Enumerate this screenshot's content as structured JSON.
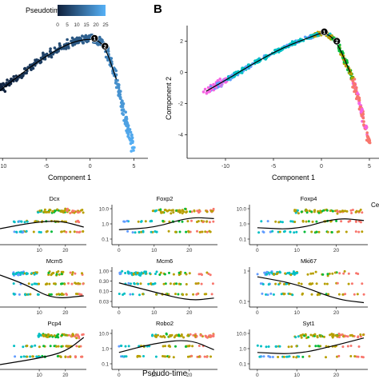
{
  "panel_label": "B",
  "panel_a": {
    "legend": {
      "title": "Pseudotime",
      "ticks": [
        "0",
        "5",
        "10",
        "15",
        "20",
        "25"
      ],
      "min": 0,
      "max": 25,
      "colors": [
        "#0f1f3a",
        "#56b1f7"
      ]
    },
    "xlabel": "Component 1",
    "x_ticks": [
      "-10",
      "-5",
      "0",
      "5"
    ],
    "branch_points": [
      "1",
      "2"
    ]
  },
  "panel_b": {
    "xlabel": "Component 1",
    "ylabel": "Component 2",
    "x_ticks": [
      "-10",
      "-5",
      "0",
      "5"
    ],
    "y_ticks": [
      "2",
      "0",
      "-2",
      "-4"
    ],
    "branch_points": [
      "1",
      "2"
    ]
  },
  "genes": {
    "x_axis_label": "Pseudo-time",
    "row1": [
      {
        "name": "Dcx",
        "y_ticks": [],
        "x_ticks": [
          "10",
          "20"
        ]
      },
      {
        "name": "Foxp2",
        "y_ticks": [
          "10.0",
          "1.0",
          "0.1"
        ],
        "x_ticks": [
          "0",
          "10",
          "20"
        ]
      },
      {
        "name": "Foxp4",
        "y_ticks": [
          "10.0",
          "1.0",
          "0.1"
        ],
        "x_ticks": [
          "0",
          "10",
          "20"
        ]
      }
    ],
    "row2": [
      {
        "name": "Mcm5",
        "y_ticks": [],
        "x_ticks": [
          "10",
          "20"
        ]
      },
      {
        "name": "Mcm6",
        "y_ticks": [
          "1.00",
          "0.30",
          "0.10",
          "0.03"
        ],
        "x_ticks": [
          "0",
          "10",
          "20"
        ]
      },
      {
        "name": "Mki67",
        "y_ticks": [
          "1",
          "0.1"
        ],
        "x_ticks": [
          "0",
          "10",
          "20"
        ]
      }
    ],
    "row3": [
      {
        "name": "Pcp4",
        "y_ticks": [],
        "x_ticks": [
          "10",
          "20"
        ]
      },
      {
        "name": "Robo2",
        "y_ticks": [
          "10.0",
          "1.0",
          "0.1"
        ],
        "x_ticks": [
          "0",
          "10",
          "20"
        ]
      },
      {
        "name": "Syt1",
        "y_ticks": [
          "10.0",
          "1.0",
          "0.1"
        ],
        "x_ticks": [
          "0",
          "10",
          "20"
        ]
      }
    ],
    "legend_title_fragment": "Ce"
  },
  "state_colors": [
    "#F8766D",
    "#B79F00",
    "#00BA38",
    "#00BFC4",
    "#619CFF",
    "#F564E3"
  ],
  "chart_data": [
    {
      "type": "scatter",
      "panel": "A",
      "xlabel": "Component 1",
      "color_by": "Pseudotime",
      "xlim": [
        -11,
        6
      ],
      "ylim": [
        -5,
        3
      ],
      "trajectory": [
        [
          -10.5,
          -0.8
        ],
        [
          -8,
          0.3
        ],
        [
          -5,
          1.5
        ],
        [
          -2,
          2.4
        ],
        [
          0.5,
          2.6
        ],
        [
          1.7,
          2.1
        ],
        [
          3,
          0
        ],
        [
          4,
          -2.5
        ],
        [
          5,
          -4.5
        ]
      ]
    },
    {
      "type": "scatter",
      "panel": "B",
      "xlabel": "Component 1",
      "ylabel": "Component 2",
      "color_by": "State",
      "xlim": [
        -14,
        6
      ],
      "ylim": [
        -5.5,
        3
      ],
      "trajectory": [
        [
          -12,
          -1.2
        ],
        [
          -10,
          -0.5
        ],
        [
          -7,
          0.6
        ],
        [
          -4,
          1.6
        ],
        [
          -1,
          2.3
        ],
        [
          0.3,
          2.6
        ],
        [
          1.6,
          2.0
        ],
        [
          3,
          0
        ],
        [
          4,
          -2
        ],
        [
          5,
          -4.5
        ]
      ]
    },
    {
      "type": "scatter",
      "subtype": "gene_expression_vs_pseudotime",
      "xlabel": "Pseudo-time",
      "genes": [
        {
          "name": "Dcx",
          "trend": "rising then plateau"
        },
        {
          "name": "Foxp2",
          "trend": [
            [
              0,
              0.15
            ],
            [
              10,
              0.2
            ],
            [
              20,
              1.0
            ],
            [
              27,
              0.8
            ]
          ]
        },
        {
          "name": "Foxp4",
          "trend": [
            [
              0,
              0.2
            ],
            [
              10,
              0.15
            ],
            [
              20,
              0.9
            ],
            [
              27,
              0.6
            ]
          ]
        },
        {
          "name": "Mcm5",
          "trend": "decreasing"
        },
        {
          "name": "Mcm6",
          "trend": [
            [
              0,
              0.6
            ],
            [
              10,
              0.15
            ],
            [
              20,
              0.04
            ],
            [
              27,
              0.06
            ]
          ]
        },
        {
          "name": "Mki67",
          "trend": [
            [
              0,
              1.5
            ],
            [
              10,
              0.5
            ],
            [
              20,
              0.05
            ],
            [
              27,
              0.03
            ]
          ]
        },
        {
          "name": "Pcp4",
          "trend": "rising"
        },
        {
          "name": "Robo2",
          "trend": [
            [
              0,
              0.2
            ],
            [
              10,
              0.8
            ],
            [
              20,
              1.5
            ],
            [
              27,
              0.3
            ]
          ]
        },
        {
          "name": "Syt1",
          "trend": [
            [
              0,
              0.2
            ],
            [
              10,
              0.15
            ],
            [
              20,
              0.6
            ],
            [
              27,
              1.8
            ]
          ]
        }
      ]
    }
  ]
}
